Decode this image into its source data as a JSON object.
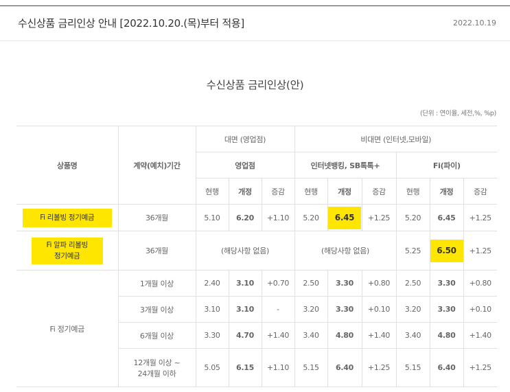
{
  "header": {
    "title": "수신상품 금리인상 안내 [2022.10.20.(목)부터 적용]",
    "date": "2022.10.19"
  },
  "document": {
    "title": "수신상품 금리인상(안)",
    "unit_note": "(단위 : 연이율, 세전,%, %p)"
  },
  "table": {
    "headers": {
      "product": "상품명",
      "period": "계약(예치)기간",
      "face": "대면 (영업점)",
      "nonface": "비대면 (인터넷,모바일)",
      "branch": "영업점",
      "internet": "인터넷뱅킹, SB톡톡+",
      "fi": "Fi(파이)",
      "current": "현행",
      "revised": "개정",
      "change": "증감"
    },
    "rows": [
      {
        "product": "Fi 리볼빙 정기예금",
        "period": "36개월",
        "branch": [
          "5.10",
          "6.20",
          "+1.10"
        ],
        "internet": [
          "5.20",
          "6.45",
          "+1.25"
        ],
        "fi": [
          "5.20",
          "6.45",
          "+1.25"
        ]
      },
      {
        "product_line1": "Fi 알파 리볼빙",
        "product_line2": "정기예금",
        "period": "36개월",
        "branch_na": "(해당사항 없음)",
        "internet_na": "(해당사항 없음)",
        "fi": [
          "5.25",
          "6.50",
          "+1.25"
        ]
      },
      {
        "product": "Fi 정기예금",
        "sub": [
          {
            "period": "1개월 이상",
            "branch": [
              "2.40",
              "3.10",
              "+0.70"
            ],
            "internet": [
              "2.50",
              "3.30",
              "+0.80"
            ],
            "fi": [
              "2.50",
              "3.30",
              "+0.80"
            ]
          },
          {
            "period": "3개월 이상",
            "branch": [
              "3.10",
              "3.10",
              "-"
            ],
            "internet": [
              "3.20",
              "3.30",
              "+0.10"
            ],
            "fi": [
              "3.20",
              "3.30",
              "+0.10"
            ]
          },
          {
            "period": "6개월 이상",
            "branch": [
              "3.30",
              "4.70",
              "+1.40"
            ],
            "internet": [
              "3.40",
              "4.80",
              "+1.40"
            ],
            "fi": [
              "3.40",
              "4.80",
              "+1.40"
            ]
          },
          {
            "period_line1": "12개월 이상 ~",
            "period_line2": "24개월 이하",
            "branch": [
              "5.05",
              "6.15",
              "+1.10"
            ],
            "internet": [
              "5.15",
              "6.40",
              "+1.25"
            ],
            "fi": [
              "5.15",
              "6.40",
              "+1.25"
            ]
          }
        ]
      }
    ]
  }
}
